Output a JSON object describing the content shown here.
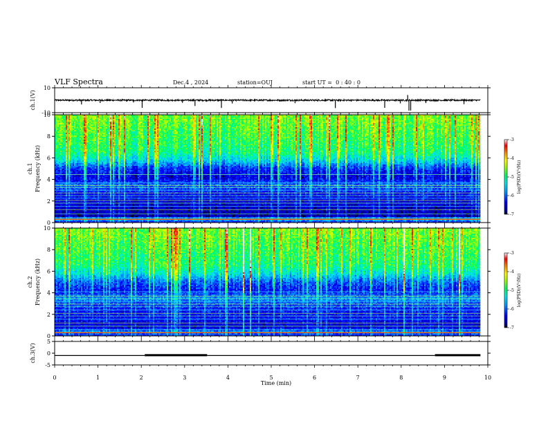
{
  "header": {
    "title": "VLF Spectra",
    "date": "Dec.4 , 2024",
    "station": "station=OUJ",
    "start": "start UT =  0 : 40 : 0"
  },
  "chart_data": [
    {
      "id": "ch1-waveform",
      "type": "line",
      "ylabel": "ch.1(V)",
      "ylim": [
        -10,
        10
      ],
      "yticks": [
        "10",
        "-10"
      ],
      "xlim": [
        0,
        10
      ],
      "x_end": 9.83,
      "baseline": 0.0,
      "noise_amp": 0.6,
      "spikes": [
        {
          "x": 0.62,
          "y": -3.4
        },
        {
          "x": 1.05,
          "y": -2.2
        },
        {
          "x": 1.82,
          "y": -1.8
        },
        {
          "x": 2.02,
          "y": -6.1
        },
        {
          "x": 2.95,
          "y": -2.1
        },
        {
          "x": 3.24,
          "y": -4.6
        },
        {
          "x": 3.85,
          "y": -6.2
        },
        {
          "x": 4.1,
          "y": -2.6
        },
        {
          "x": 5.55,
          "y": -2.4
        },
        {
          "x": 6.48,
          "y": -6.3
        },
        {
          "x": 7.62,
          "y": -6.1
        },
        {
          "x": 7.98,
          "y": -2.5
        },
        {
          "x": 8.15,
          "y": 4.2
        },
        {
          "x": 8.18,
          "y": -8.4
        },
        {
          "x": 8.22,
          "y": -8.3
        },
        {
          "x": 8.57,
          "y": -2.3
        },
        {
          "x": 9.45,
          "y": -3.2
        }
      ]
    },
    {
      "id": "ch1-spectrogram",
      "type": "heatmap",
      "ylabel": "ch.1\nFrequency (kHz)",
      "ylim": [
        0,
        10
      ],
      "yticks": [
        "0",
        "2",
        "4",
        "6",
        "8",
        "10"
      ],
      "xlim": [
        0,
        10
      ],
      "x_end": 9.83,
      "colorbar": {
        "label": "log(PSD)(V²/Hz)",
        "range": [
          -7,
          -3
        ],
        "ticks": [
          "-3",
          "-4",
          "-5",
          "-6",
          "-7"
        ]
      },
      "profile": [
        {
          "f": 0.0,
          "v": -6.4
        },
        {
          "f": 0.35,
          "v": -5.4
        },
        {
          "f": 0.55,
          "v": -6.7
        },
        {
          "f": 1.5,
          "v": -6.6
        },
        {
          "f": 2.5,
          "v": -6.4
        },
        {
          "f": 3.5,
          "v": -6.0
        },
        {
          "f": 4.2,
          "v": -6.5
        },
        {
          "f": 5.0,
          "v": -6.2
        },
        {
          "f": 5.8,
          "v": -5.4
        },
        {
          "f": 6.5,
          "v": -5.0
        },
        {
          "f": 8.0,
          "v": -4.8
        },
        {
          "f": 10.0,
          "v": -4.6
        }
      ],
      "lines_khz": [
        0.3,
        0.45,
        0.8,
        1.2,
        1.5,
        1.8,
        2.05,
        2.25,
        2.5,
        2.75,
        3.0,
        3.25,
        3.45,
        3.7,
        4.45
      ]
    },
    {
      "id": "ch2-spectrogram",
      "type": "heatmap",
      "ylabel": "ch.2\nFrequency (kHz)",
      "ylim": [
        0,
        10
      ],
      "yticks": [
        "0",
        "2",
        "4",
        "6",
        "8",
        "10"
      ],
      "xlim": [
        0,
        10
      ],
      "x_end": 9.83,
      "colorbar": {
        "label": "log(PSD)(V²/Hz)",
        "range": [
          -7,
          -3
        ],
        "ticks": [
          "-3",
          "-4",
          "-5",
          "-6",
          "-7"
        ]
      },
      "profile": [
        {
          "f": 0.0,
          "v": -6.3
        },
        {
          "f": 0.4,
          "v": -5.8
        },
        {
          "f": 0.8,
          "v": -6.6
        },
        {
          "f": 1.5,
          "v": -6.4
        },
        {
          "f": 2.5,
          "v": -6.3
        },
        {
          "f": 3.5,
          "v": -5.8
        },
        {
          "f": 4.2,
          "v": -6.3
        },
        {
          "f": 5.0,
          "v": -6.0
        },
        {
          "f": 5.8,
          "v": -5.3
        },
        {
          "f": 6.5,
          "v": -5.0
        },
        {
          "f": 8.0,
          "v": -4.8
        },
        {
          "f": 10.0,
          "v": -4.6
        }
      ],
      "lines_khz": [
        0.3,
        0.6,
        0.9,
        1.2,
        1.55,
        1.85,
        2.1,
        2.4,
        2.7,
        2.95,
        3.2,
        3.45,
        3.7,
        4.1
      ]
    },
    {
      "id": "ch3-waveform",
      "type": "line",
      "ylabel": "ch.3(V)",
      "ylim": [
        -5,
        5
      ],
      "yticks": [
        "5",
        "0",
        "-5"
      ],
      "xlim": [
        0,
        10
      ],
      "xticks": [
        "0",
        "1",
        "2",
        "3",
        "4",
        "5",
        "6",
        "7",
        "8",
        "9",
        "10"
      ],
      "xlabel": "Time (min)",
      "x_end": 9.83,
      "baseline": -1.0,
      "segments": [
        {
          "x0": 0.0,
          "x1": 2.08,
          "y": -1.0
        },
        {
          "x0": 2.08,
          "x1": 3.52,
          "y": -0.4
        },
        {
          "x0": 3.52,
          "x1": 8.78,
          "y": -1.0
        },
        {
          "x0": 8.78,
          "x1": 9.83,
          "y": -0.4
        }
      ]
    }
  ],
  "colors": {
    "colormap": [
      "#0d0d59",
      "#0000c8",
      "#0044ff",
      "#00a8ff",
      "#00e8e8",
      "#20ff70",
      "#c8ff00",
      "#ffff00",
      "#ffa000",
      "#ff0000",
      "#c00000",
      "#ffffff"
    ],
    "trace": "#000000",
    "axis": "#000000"
  }
}
